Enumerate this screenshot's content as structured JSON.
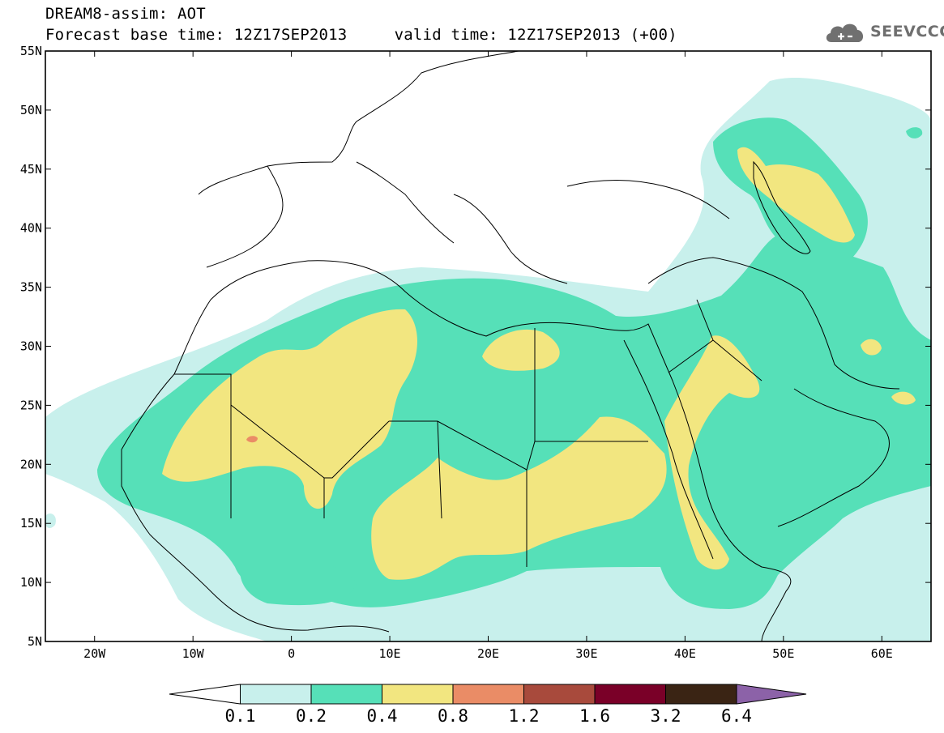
{
  "header": {
    "title_line1": "DREAM8-assim: AOT",
    "title_line2": "Forecast base time: 12Z17SEP2013     valid time: 12Z17SEP2013 (+00)",
    "logo_text": "SEEVCCC",
    "logo_icon": "cloud-icon"
  },
  "map": {
    "lon_range": [
      -25,
      65
    ],
    "lat_range": [
      5,
      55
    ],
    "lat_ticks": [
      "55N",
      "50N",
      "45N",
      "40N",
      "35N",
      "30N",
      "25N",
      "20N",
      "15N",
      "10N",
      "5N"
    ],
    "lon_ticks": [
      "20W",
      "10W",
      "0",
      "10E",
      "20E",
      "30E",
      "40E",
      "50E",
      "60E"
    ],
    "colors": {
      "land_line": "#000000",
      "frame": "#000000"
    }
  },
  "colorbar": {
    "levels": [
      "0.1",
      "0.2",
      "0.4",
      "0.8",
      "1.2",
      "1.6",
      "3.2",
      "6.4"
    ],
    "colors": [
      "#ffffff",
      "#c8f0ec",
      "#56e0b8",
      "#f2e680",
      "#ea8c66",
      "#a84a3c",
      "#7a0028",
      "#3a2414",
      "#8c62a8"
    ]
  }
}
